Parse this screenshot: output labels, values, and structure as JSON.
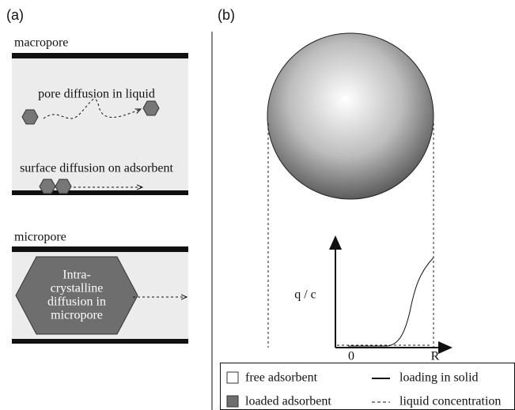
{
  "panel_a": {
    "label": "(a)",
    "macropore": {
      "title": "macropore",
      "pore_diffusion": "pore diffusion in liquid",
      "surface_diffusion": "surface diffusion on adsorbent"
    },
    "micropore": {
      "title": "micropore",
      "crystal_lines": [
        "Intra-",
        "crystalline",
        "diffusion in",
        "micropore"
      ]
    }
  },
  "panel_b": {
    "label": "(b)",
    "y_axis_label": "q / c",
    "x_start": "0",
    "x_end": "R"
  },
  "legend": {
    "free_adsorbent": "free adsorbent",
    "loading_in_solid": "loading in solid",
    "loaded_adsorbent": "loaded adsorbent",
    "liquid_concentration": "liquid concentration"
  }
}
